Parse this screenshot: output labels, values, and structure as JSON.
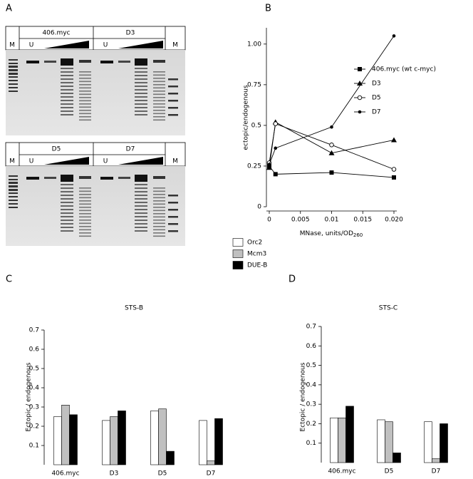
{
  "panel_labels": [
    "A",
    "B",
    "C",
    "D"
  ],
  "gels": [
    {
      "left_lane": "M",
      "groups": [
        {
          "name": "406.myc",
          "lane": "U"
        },
        {
          "name": "D3",
          "lane": "U"
        }
      ],
      "right_lane": "M"
    },
    {
      "left_lane": "M",
      "groups": [
        {
          "name": "D5",
          "lane": "U"
        },
        {
          "name": "D7",
          "lane": "U"
        }
      ],
      "right_lane": "M"
    }
  ],
  "chart_data": [
    {
      "type": "line",
      "y_label": "ectopic/endogenous",
      "x_label": "MNase, units/OD",
      "x_label_sub": "260",
      "x": [
        0,
        0.001,
        0.01,
        0.02
      ],
      "xlim": [
        0,
        0.02
      ],
      "xticks": [
        0,
        0.005,
        0.01,
        0.015,
        {
          "value": 0.02,
          "label": "0.020"
        }
      ],
      "ylim": [
        0,
        1.1
      ],
      "yticks": [
        0,
        0.25,
        0.5,
        0.75,
        {
          "value": 1,
          "label": "1.00"
        }
      ],
      "series": [
        {
          "name": "406.myc (wt c-myc)",
          "color": "#000000",
          "marker": "square",
          "values": [
            0.25,
            0.2,
            0.21,
            0.18
          ]
        },
        {
          "name": "D3",
          "color": "#000000",
          "marker": "triangle",
          "values": [
            0.24,
            0.52,
            0.33,
            0.41
          ]
        },
        {
          "name": "D5",
          "color": "#000000",
          "marker": "open-circle",
          "values": [
            0.27,
            0.51,
            0.38,
            0.23
          ]
        },
        {
          "name": "D7",
          "color": "#000000",
          "marker": "circle",
          "values": [
            0.26,
            0.36,
            0.49,
            1.05
          ]
        }
      ]
    },
    {
      "type": "bar",
      "title": "STS-B",
      "y_label": "Ectopic / endogenous",
      "categories": [
        "406.myc",
        "D3",
        "D5",
        "D7"
      ],
      "ylim": [
        0,
        0.7
      ],
      "yticks": [
        0.1,
        0.2,
        0.3,
        0.4,
        0.5,
        0.6,
        0.7
      ],
      "legend": true,
      "series": [
        {
          "name": "Orc2",
          "color": "#ffffff",
          "values": [
            0.25,
            0.23,
            0.28,
            0.23
          ]
        },
        {
          "name": "Mcm3",
          "color": "#c0c0c0",
          "values": [
            0.31,
            0.25,
            0.29,
            0.02
          ]
        },
        {
          "name": "DUE-B",
          "color": "#000000",
          "values": [
            0.26,
            0.28,
            0.07,
            0.24
          ]
        }
      ]
    },
    {
      "type": "bar",
      "title": "STS-C",
      "y_label": "Ectopic / endogenous",
      "categories": [
        "406.myc",
        "D5",
        "D7"
      ],
      "ylim": [
        0,
        0.7
      ],
      "yticks": [
        0.1,
        0.2,
        0.3,
        0.4,
        0.5,
        0.6,
        0.7
      ],
      "legend": false,
      "series": [
        {
          "name": "Orc2",
          "color": "#ffffff",
          "values": [
            0.23,
            0.22,
            0.21
          ]
        },
        {
          "name": "Mcm3",
          "color": "#c0c0c0",
          "values": [
            0.23,
            0.21,
            0.02
          ]
        },
        {
          "name": "DUE-B",
          "color": "#000000",
          "values": [
            0.29,
            0.05,
            0.2
          ]
        }
      ]
    }
  ]
}
